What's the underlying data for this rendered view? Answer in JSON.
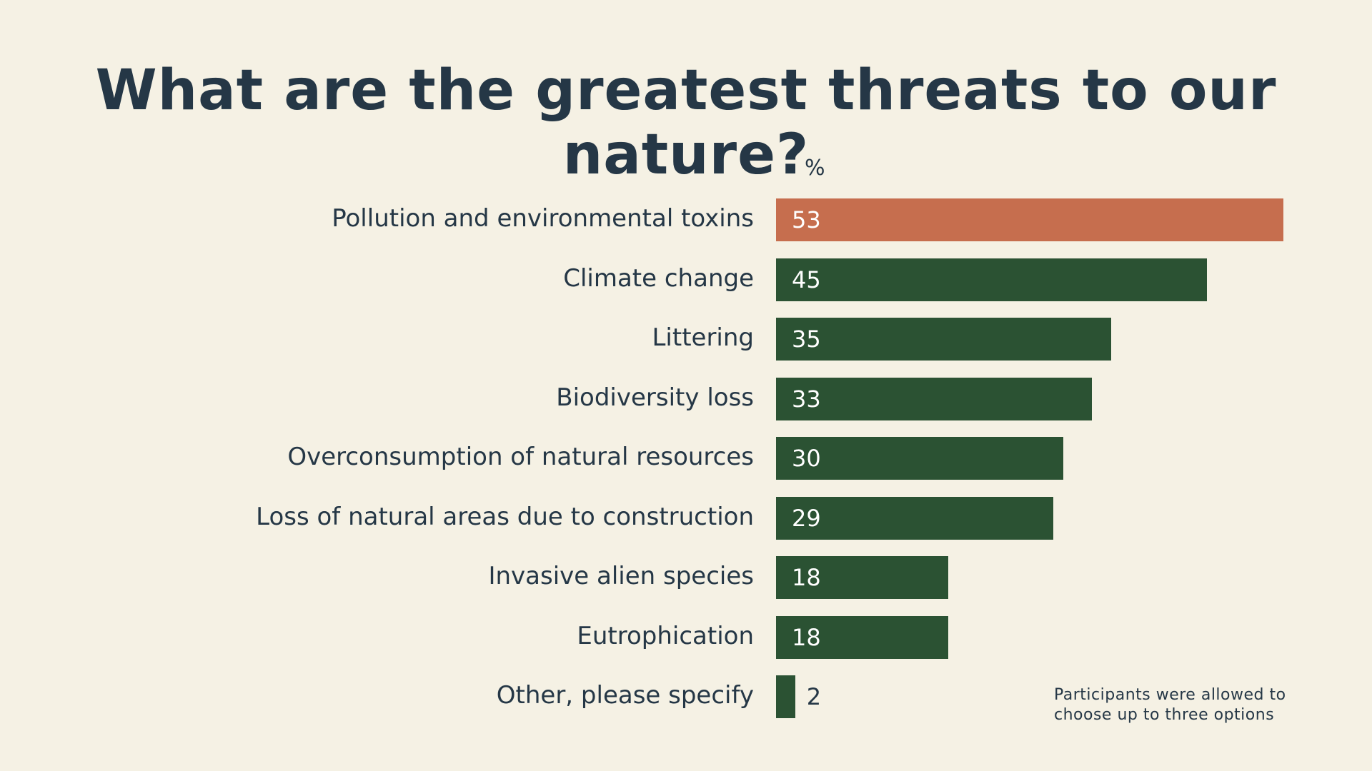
{
  "chart_data": {
    "type": "bar",
    "orientation": "horizontal",
    "title": "What are the greatest threats to our nature?",
    "unit_label": "%",
    "categories": [
      "Pollution and environmental toxins",
      "Climate change",
      "Littering",
      "Biodiversity loss",
      "Overconsumption of natural resources",
      "Loss of natural areas due to construction",
      "Invasive alien species",
      "Eutrophication",
      "Other, please specify"
    ],
    "values": [
      53,
      45,
      35,
      33,
      30,
      29,
      18,
      18,
      2
    ],
    "highlight_index": 0,
    "colors": {
      "highlight": "#c66e4e",
      "default": "#2b5233",
      "background": "#f5f1e4",
      "text": "#253746"
    },
    "note": [
      "Participants were allowed to",
      "choose up to three options"
    ],
    "grid": false
  }
}
